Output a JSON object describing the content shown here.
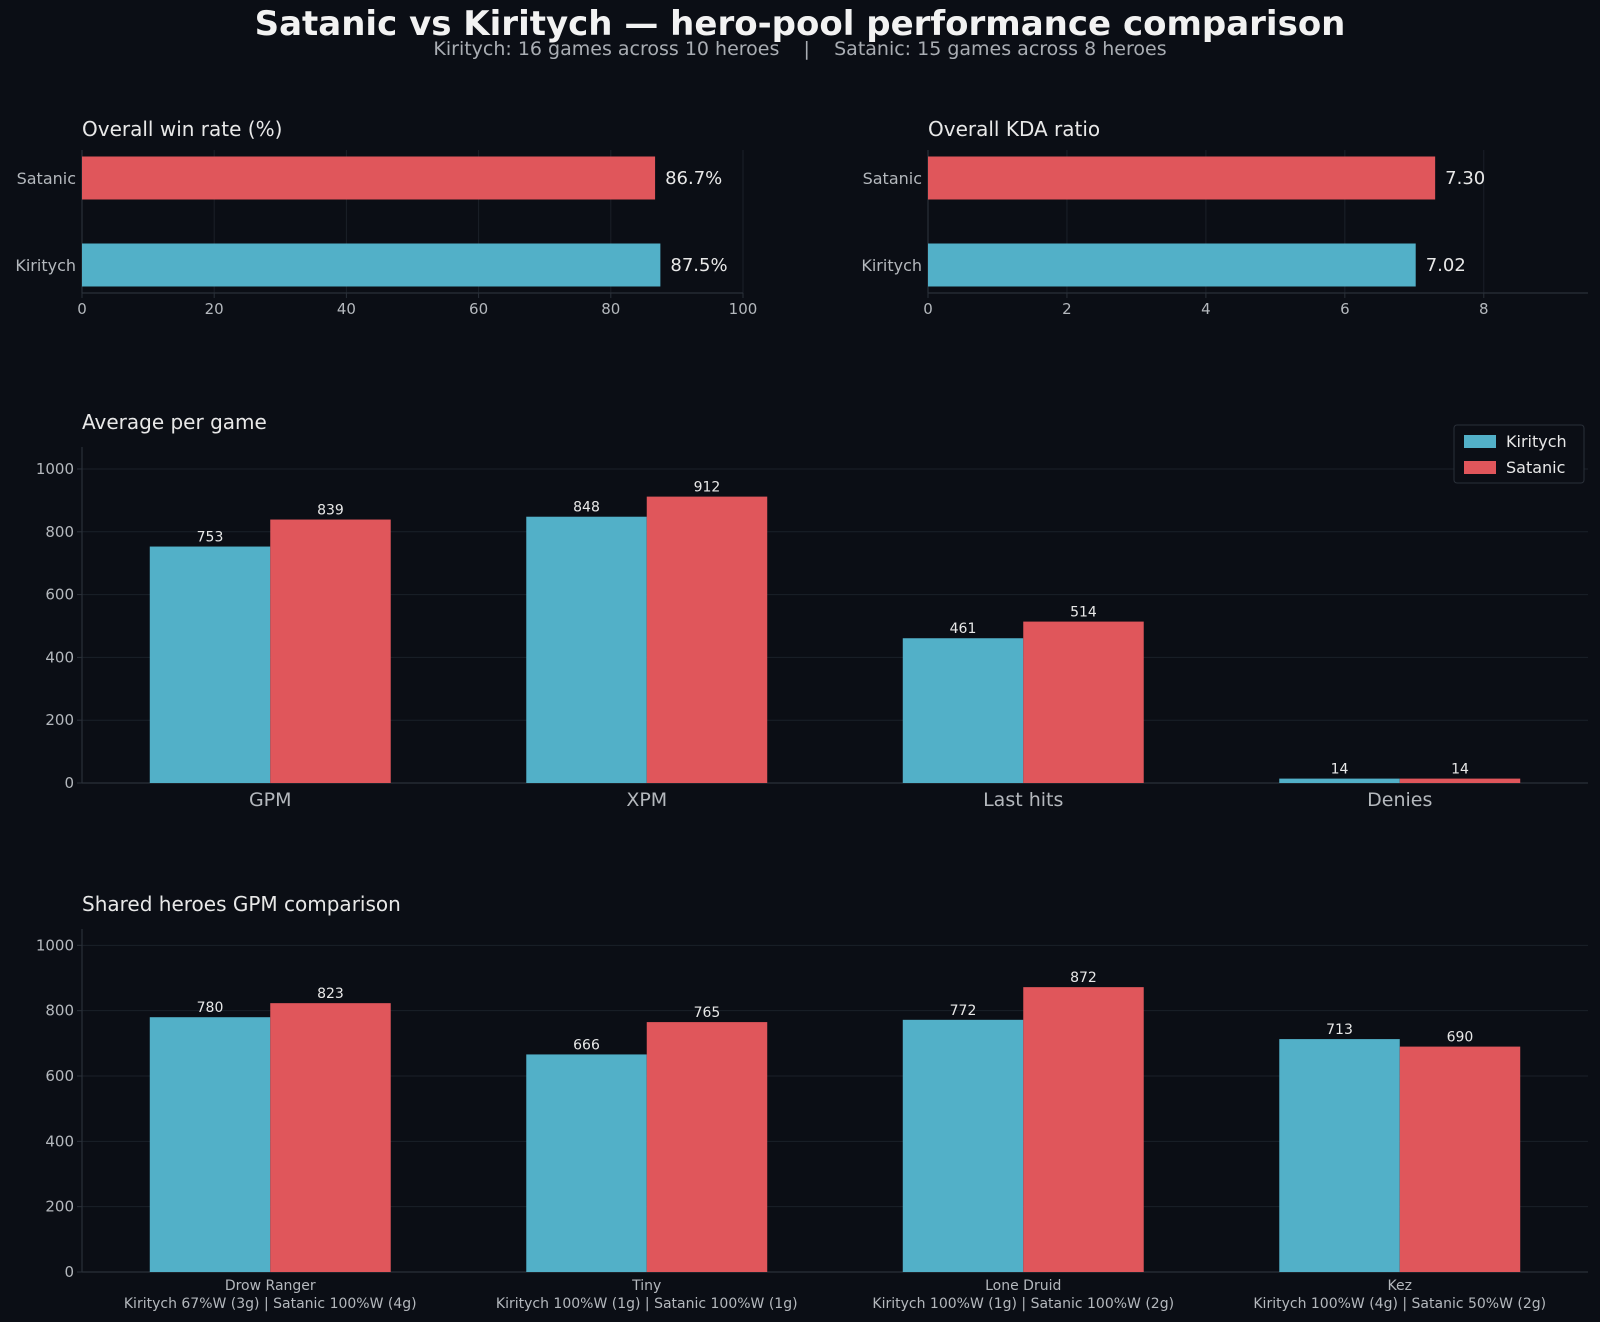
{
  "figure": {
    "title": "Satanic vs Kiritych — hero-pool performance comparison",
    "subtitle": "Kiritych: 16 games across 10 heroes    |    Satanic: 15 games across 8 heroes"
  },
  "colors": {
    "kiritych": "#52b0c8",
    "satanic": "#e0565b",
    "background": "#0b0e15",
    "grid": "#1b2029",
    "axis": "#2a3039",
    "text": "#e8e8e8",
    "muted": "#b4b8bd"
  },
  "chart_data": [
    {
      "type": "bar",
      "orientation": "horizontal",
      "title": "Overall win rate (%)",
      "categories": [
        "Satanic",
        "Kiritych"
      ],
      "values": [
        86.7,
        87.5
      ],
      "value_labels": [
        "86.7%",
        "87.5%"
      ],
      "xlim": [
        0,
        100
      ],
      "xticks": [
        0,
        20,
        40,
        60,
        80,
        100
      ],
      "grid": true
    },
    {
      "type": "bar",
      "orientation": "horizontal",
      "title": "Overall KDA ratio",
      "categories": [
        "Satanic",
        "Kiritych"
      ],
      "values": [
        7.3,
        7.02
      ],
      "value_labels": [
        "7.30",
        "7.02"
      ],
      "xlim": [
        0,
        9.5
      ],
      "xticks": [
        0,
        2,
        4,
        6,
        8
      ],
      "grid": true
    },
    {
      "type": "bar",
      "title": "Average per game",
      "categories": [
        "GPM",
        "XPM",
        "Last hits",
        "Denies"
      ],
      "series": [
        {
          "name": "Kiritych",
          "values": [
            753,
            848,
            461,
            14
          ]
        },
        {
          "name": "Satanic",
          "values": [
            839,
            912,
            514,
            14
          ]
        }
      ],
      "ylim": [
        0,
        1070
      ],
      "yticks": [
        0,
        200,
        400,
        600,
        800,
        1000
      ],
      "legend": "top-right",
      "grid": true
    },
    {
      "type": "bar",
      "title": "Shared heroes GPM comparison",
      "categories": [
        "Drow Ranger",
        "Tiny",
        "Lone Druid",
        "Kez"
      ],
      "category_sublabels": [
        "Kiritych 67%W (3g)  |  Satanic 100%W (4g)",
        "Kiritych 100%W (1g)  |  Satanic 100%W (1g)",
        "Kiritych 100%W (1g)  |  Satanic 100%W (2g)",
        "Kiritych 100%W (4g)  |  Satanic 50%W (2g)"
      ],
      "series": [
        {
          "name": "Kiritych",
          "values": [
            780,
            666,
            772,
            713
          ]
        },
        {
          "name": "Satanic",
          "values": [
            823,
            765,
            872,
            690
          ]
        }
      ],
      "ylim": [
        0,
        1050
      ],
      "yticks": [
        0,
        200,
        400,
        600,
        800,
        1000
      ],
      "grid": true
    }
  ]
}
